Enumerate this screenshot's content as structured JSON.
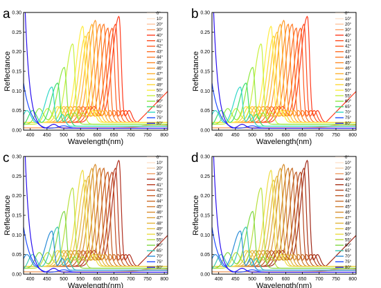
{
  "chart_data": {
    "type": "line",
    "x_axis_label": "Wavelength(nm)",
    "y_axis_label": "Reflectance",
    "x_range": [
      380,
      810
    ],
    "y_range": [
      0,
      0.3
    ],
    "x_ticks": [
      "400",
      "450",
      "500",
      "550",
      "600",
      "650",
      "700",
      "750",
      "800"
    ],
    "y_ticks": [
      "0.00",
      "0.05",
      "0.10",
      "0.15",
      "0.20",
      "0.25",
      "0.30"
    ],
    "legend_placement": "right",
    "legend_labels": [
      "0°",
      "10°",
      "20°",
      "30°",
      "40°",
      "41°",
      "42°",
      "43°",
      "44°",
      "45°",
      "46°",
      "47°",
      "48°",
      "49°",
      "50°",
      "55°",
      "60°",
      "65°",
      "70°",
      "75°",
      "80°"
    ],
    "panels": [
      {
        "letter": "a",
        "colors": [
          "#fff2e8",
          "#ffe2cc",
          "#ffc59c",
          "#ff9e62",
          "#ff3a1c",
          "#ff4a1c",
          "#ff5a1e",
          "#ff6a20",
          "#ff7a24",
          "#ff8a26",
          "#ff9c2a",
          "#ffb02e",
          "#ffc432",
          "#ffd836",
          "#ffec40",
          "#c8f03e",
          "#8ee840",
          "#3ede6a",
          "#30d8c8",
          "#1e4cff",
          "#2a10ee"
        ]
      },
      {
        "letter": "b",
        "colors": [
          "#fff2e8",
          "#ffe2cc",
          "#ffc59c",
          "#ff9e62",
          "#ff3a1c",
          "#ff4a1c",
          "#ff5a1e",
          "#ff6a20",
          "#ff7a24",
          "#ff8a26",
          "#ff9c2a",
          "#ffb02e",
          "#ffc432",
          "#ffd836",
          "#ffec40",
          "#c8f03e",
          "#8ee840",
          "#3ede6a",
          "#30d8c8",
          "#1e4cff",
          "#2a10ee"
        ]
      },
      {
        "letter": "c",
        "colors": [
          "#fff2e8",
          "#ffe2cc",
          "#f8d0a8",
          "#ef9e62",
          "#b03020",
          "#b83a20",
          "#c04a22",
          "#c85a22",
          "#cc6a24",
          "#d47a28",
          "#d88c2c",
          "#dea032",
          "#e4b438",
          "#eac63c",
          "#eedc42",
          "#b8e03e",
          "#80d844",
          "#3cc8b0",
          "#2a8cd8",
          "#1e4cff",
          "#2a10ee"
        ]
      },
      {
        "letter": "d",
        "colors": [
          "#fff2e8",
          "#ffe2cc",
          "#f8d0a8",
          "#ef9e62",
          "#a02818",
          "#aa3418",
          "#b4441c",
          "#be5620",
          "#c66a24",
          "#ce7c28",
          "#d68e2e",
          "#dca234",
          "#e2b63a",
          "#e8c83e",
          "#eedc42",
          "#b8e03e",
          "#80d844",
          "#3cc8b0",
          "#2a8cd8",
          "#1e4cff",
          "#2a10ee"
        ]
      }
    ],
    "series": [
      {
        "name": "0°",
        "peak": 0.008,
        "base": 0.006
      },
      {
        "name": "10°",
        "peak": 0.01,
        "base": 0.006
      },
      {
        "name": "20°",
        "peak": 0.012,
        "base": 0.006
      },
      {
        "name": "30°",
        "peak": 0.015,
        "base": 0.006
      },
      {
        "name": "40°",
        "peak_x": 665,
        "peak": 0.29,
        "base": 0.02
      },
      {
        "name": "41°",
        "peak_x": 655,
        "peak": 0.27,
        "base": 0.02
      },
      {
        "name": "42°",
        "peak_x": 645,
        "peak": 0.26,
        "base": 0.02
      },
      {
        "name": "43°",
        "peak_x": 632,
        "peak": 0.26,
        "base": 0.02
      },
      {
        "name": "44°",
        "peak_x": 620,
        "peak": 0.27,
        "base": 0.02
      },
      {
        "name": "45°",
        "peak_x": 608,
        "peak": 0.27,
        "base": 0.02
      },
      {
        "name": "46°",
        "peak_x": 595,
        "peak": 0.28,
        "base": 0.02
      },
      {
        "name": "47°",
        "peak_x": 585,
        "peak": 0.27,
        "base": 0.02
      },
      {
        "name": "48°",
        "peak_x": 575,
        "peak": 0.25,
        "base": 0.02
      },
      {
        "name": "49°",
        "peak_x": 565,
        "peak": 0.24,
        "base": 0.02
      },
      {
        "name": "50°",
        "peak_x": 557,
        "peak": 0.265,
        "base": 0.02
      },
      {
        "name": "55°",
        "peak_x": 527,
        "peak": 0.22,
        "base": 0.015
      },
      {
        "name": "60°",
        "peak_x": 502,
        "peak": 0.16,
        "base": 0.015
      },
      {
        "name": "65°",
        "peak_x": 482,
        "peak": 0.12,
        "base": 0.01
      },
      {
        "name": "70°",
        "peak_x": 465,
        "peak": 0.11,
        "base": 0.01
      },
      {
        "name": "75°",
        "peak_x": 380,
        "peak": 0.12,
        "base": 0.005
      },
      {
        "name": "80°",
        "peak_x": 385,
        "peak": 0.3,
        "base": 0.005
      }
    ]
  }
}
